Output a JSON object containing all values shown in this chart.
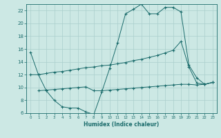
{
  "xlabel": "Humidex (Indice chaleur)",
  "xlim": [
    -0.5,
    23.5
  ],
  "ylim": [
    6,
    23
  ],
  "yticks": [
    6,
    8,
    10,
    12,
    14,
    16,
    18,
    20,
    22
  ],
  "xticks": [
    0,
    1,
    2,
    3,
    4,
    5,
    6,
    7,
    8,
    9,
    10,
    11,
    12,
    13,
    14,
    15,
    16,
    17,
    18,
    19,
    20,
    21,
    22,
    23
  ],
  "background_color": "#cce8e4",
  "grid_color": "#aacfcc",
  "line_color": "#1a6b6b",
  "line1_x": [
    0,
    1,
    2,
    3,
    4,
    5,
    6,
    7,
    8,
    9,
    10,
    11,
    12,
    13,
    14,
    15,
    16,
    17,
    18,
    19,
    20,
    21,
    22,
    23
  ],
  "line1_y": [
    15.5,
    12.0,
    9.5,
    8.0,
    7.0,
    6.8,
    6.8,
    6.2,
    5.8,
    9.3,
    13.0,
    17.0,
    21.5,
    22.2,
    23.0,
    21.5,
    21.5,
    22.5,
    22.5,
    21.8,
    13.5,
    11.5,
    10.5,
    10.8
  ],
  "line2_x": [
    0,
    1,
    2,
    3,
    4,
    5,
    6,
    7,
    8,
    9,
    10,
    11,
    12,
    13,
    14,
    15,
    16,
    17,
    18,
    19,
    20,
    21,
    22,
    23
  ],
  "line2_y": [
    12.0,
    12.0,
    12.2,
    12.4,
    12.5,
    12.7,
    12.9,
    13.1,
    13.2,
    13.4,
    13.5,
    13.7,
    13.9,
    14.2,
    14.4,
    14.7,
    15.0,
    15.4,
    15.8,
    17.2,
    13.2,
    10.7,
    10.5,
    10.8
  ],
  "line3_x": [
    1,
    2,
    3,
    4,
    5,
    6,
    7,
    8,
    9,
    10,
    11,
    12,
    13,
    14,
    15,
    16,
    17,
    18,
    19,
    20,
    21,
    22,
    23
  ],
  "line3_y": [
    9.5,
    9.6,
    9.7,
    9.8,
    9.9,
    10.0,
    10.1,
    9.5,
    9.5,
    9.6,
    9.7,
    9.8,
    9.9,
    10.0,
    10.1,
    10.2,
    10.3,
    10.4,
    10.5,
    10.5,
    10.4,
    10.5,
    10.8
  ]
}
